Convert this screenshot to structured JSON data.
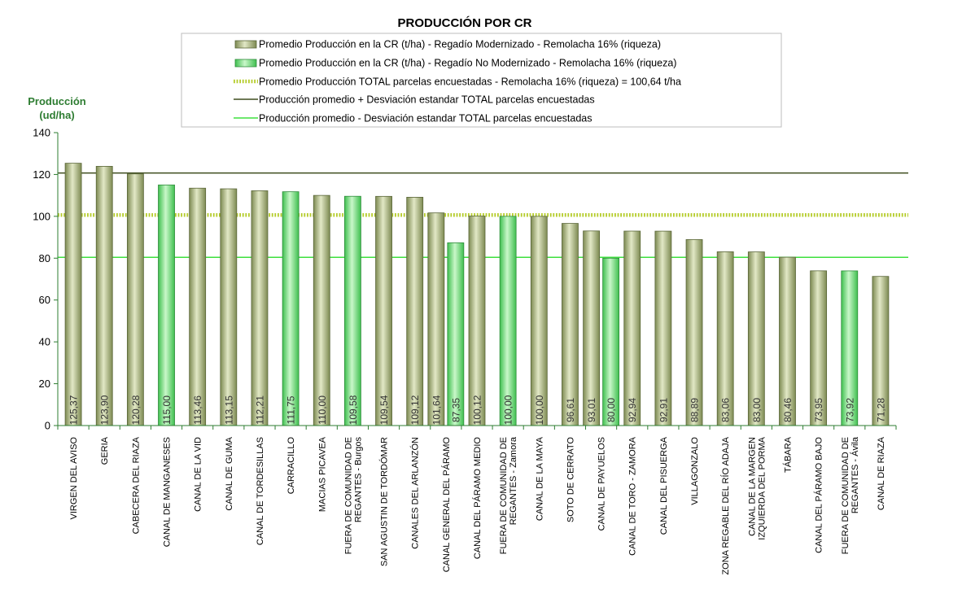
{
  "chart_data": {
    "type": "bar",
    "title": "PRODUCCIÓN POR CR",
    "ylabel_line1": "Producción",
    "ylabel_line2": "(ud/ha)",
    "ylim": [
      0,
      140
    ],
    "yticks": [
      0,
      20,
      40,
      60,
      80,
      100,
      120,
      140
    ],
    "categories": [
      "VIRGEN DEL AVISO",
      "GERIA",
      "CABECERA DEL RIAZA",
      "CANAL DE MANGANESES",
      "CANAL DE LA VID",
      "CANAL DE GUMA",
      "CANAL DE TORDESILLAS",
      "CARRACILLO",
      "MACIAS PICAVEA",
      "FUERA DE COMUNIDAD DE REGANTES - Burgos",
      "SAN AGUSTIN DE TORDÓMAR",
      "CANALES DEL ARLANZÓN",
      "CANAL GENERAL DEL PÁRAMO",
      "CANAL DEL PÁRAMO MEDIO",
      "FUERA DE COMUNIDAD DE REGANTES - Zamora",
      "CANAL DE LA MAYA",
      "SOTO DE CERRATO",
      "CANAL DE PAYUELOS",
      "CANAL DE TORO - ZAMORA",
      "CANAL DEL PISUERGA",
      "VILLAGONZALO",
      "ZONA REGABLE DEL RÍO ADAJA",
      "CANAL DE LA MARGEN IZQUIERDA DEL PORMA",
      "TÁBARA",
      "CANAL DEL PÁRAMO BAJO",
      "FUERA DE COMUNIDAD DE REGANTES - Ávila",
      "CANAL DE RIAZA"
    ],
    "category_lines": [
      [
        "VIRGEN DEL AVISO"
      ],
      [
        "GERIA"
      ],
      [
        "CABECERA DEL RIAZA"
      ],
      [
        "CANAL DE MANGANESES"
      ],
      [
        "CANAL DE LA VID"
      ],
      [
        "CANAL DE GUMA"
      ],
      [
        "CANAL DE TORDESILLAS"
      ],
      [
        "CARRACILLO"
      ],
      [
        "MACIAS PICAVEA"
      ],
      [
        "FUERA DE COMUNIDAD DE",
        "REGANTES - Burgos"
      ],
      [
        "SAN AGUSTIN DE TORDÓMAR"
      ],
      [
        "CANALES DEL ARLANZÓN"
      ],
      [
        "CANAL GENERAL DEL PÁRAMO"
      ],
      [
        "CANAL DEL PÁRAMO MEDIO"
      ],
      [
        "FUERA DE COMUNIDAD DE",
        "REGANTES - Zamora"
      ],
      [
        "CANAL DE LA MAYA"
      ],
      [
        "SOTO DE CERRATO"
      ],
      [
        "CANAL DE PAYUELOS"
      ],
      [
        "CANAL DE TORO - ZAMORA"
      ],
      [
        "CANAL DEL PISUERGA"
      ],
      [
        "VILLAGONZALO"
      ],
      [
        "ZONA REGABLE DEL RÍO ADAJA"
      ],
      [
        "CANAL DE LA MARGEN",
        "IZQUIERDA DEL PORMA"
      ],
      [
        "TÁBARA"
      ],
      [
        "CANAL DEL PÁRAMO BAJO"
      ],
      [
        "FUERA DE COMUNIDAD DE",
        "REGANTES - Ávila"
      ],
      [
        "CANAL DE RIAZA"
      ]
    ],
    "series": [
      {
        "name": "Promedio Producción en la CR (t/ha) - Regadío Modernizado  - Remolacha 16% (riqueza)",
        "color": "#a9b77a",
        "values": [
          125.37,
          123.9,
          120.28,
          null,
          113.46,
          113.15,
          112.21,
          null,
          110.0,
          null,
          109.54,
          109.12,
          101.64,
          100.12,
          null,
          100.0,
          96.61,
          93.01,
          92.94,
          92.91,
          88.89,
          83.06,
          83.0,
          80.46,
          73.95,
          null,
          71.28
        ],
        "labels": [
          "125,37",
          "123,90",
          "120,28",
          null,
          "113,46",
          "113,15",
          "112,21",
          null,
          "110,00",
          null,
          "109,54",
          "109,12",
          "101,64",
          "100,12",
          null,
          "100,00",
          "96,61",
          "93,01",
          "92,94",
          "92,91",
          "88,89",
          "83,06",
          "83,00",
          "80,46",
          "73,95",
          null,
          "71,28"
        ]
      },
      {
        "name": "Promedio Producción en la CR (t/ha) - Regadío No Modernizado  - Remolacha 16% (riqueza)",
        "color": "#7ee17e",
        "values": [
          null,
          null,
          null,
          115.0,
          null,
          null,
          null,
          111.75,
          null,
          109.58,
          null,
          null,
          87.35,
          null,
          100.0,
          null,
          null,
          80.0,
          null,
          null,
          null,
          null,
          null,
          null,
          null,
          73.92,
          null
        ],
        "labels": [
          null,
          null,
          null,
          "115,00",
          null,
          null,
          null,
          "111,75",
          null,
          "109,58",
          null,
          null,
          "87,35",
          null,
          "100,00",
          null,
          null,
          "80,00",
          null,
          null,
          null,
          null,
          null,
          null,
          null,
          "73,92",
          null
        ]
      }
    ],
    "lines": [
      {
        "name": "Promedio Producción TOTAL parcelas encuestadas - Remolacha 16% (riqueza) = 100,64 t/ha",
        "value": 100.64,
        "color": "#b5cc2a",
        "style": "dotted"
      },
      {
        "name": "Producción promedio + Desviación estandar TOTAL parcelas encuestadas",
        "value": 120.7,
        "color": "#3e4d1e",
        "style": "solid"
      },
      {
        "name": "Producción promedio - Desviación estandar TOTAL parcelas encuestadas",
        "value": 80.4,
        "color": "#3ee03e",
        "style": "solid"
      }
    ],
    "legend_position": "top",
    "grid": false,
    "axis_color": "#2e7d32"
  }
}
